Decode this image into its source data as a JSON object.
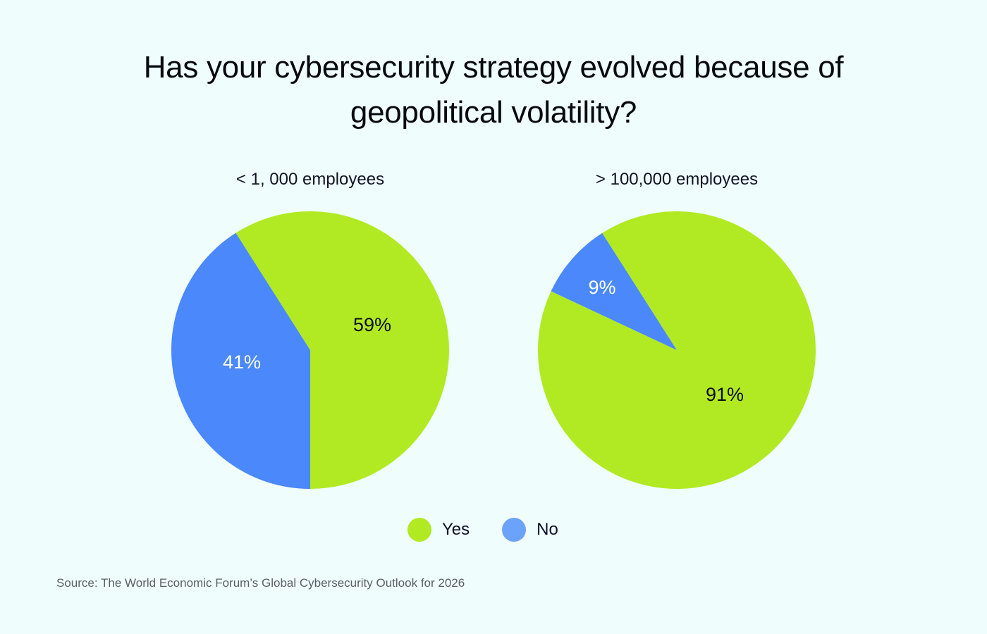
{
  "title": {
    "line1": "Has your cybersecurity strategy evolved because of",
    "line2": "geopolitical volatility?"
  },
  "colors": {
    "background": "#F0FDFD",
    "yes": "#B1EA22",
    "no": "#4A88FC",
    "legend_no": "#6BA3FA"
  },
  "charts": [
    {
      "subtitle": "< 1, 000 employees",
      "yes_label": "59%",
      "no_label": "41%"
    },
    {
      "subtitle": "> 100,000 employees",
      "yes_label": "91%",
      "no_label": "9%"
    }
  ],
  "legend": {
    "items": [
      {
        "label": "Yes",
        "color": "#B1EA22"
      },
      {
        "label": "No",
        "color": "#6BA3FA"
      }
    ]
  },
  "source": "Source: The World Economic Forum’s Global Cybersecurity Outlook for 2026",
  "chart_data": [
    {
      "type": "pie",
      "title": "Has your cybersecurity strategy evolved because of geopolitical volatility?",
      "subtitle": "< 1, 000 employees",
      "categories": [
        "Yes",
        "No"
      ],
      "values": [
        59,
        41
      ],
      "unit": "%",
      "colors": [
        "#B1EA22",
        "#4A88FC"
      ],
      "legend_position": "bottom"
    },
    {
      "type": "pie",
      "title": "Has your cybersecurity strategy evolved because of geopolitical volatility?",
      "subtitle": "> 100,000 employees",
      "categories": [
        "Yes",
        "No"
      ],
      "values": [
        91,
        9
      ],
      "unit": "%",
      "colors": [
        "#B1EA22",
        "#4A88FC"
      ],
      "legend_position": "bottom"
    }
  ]
}
